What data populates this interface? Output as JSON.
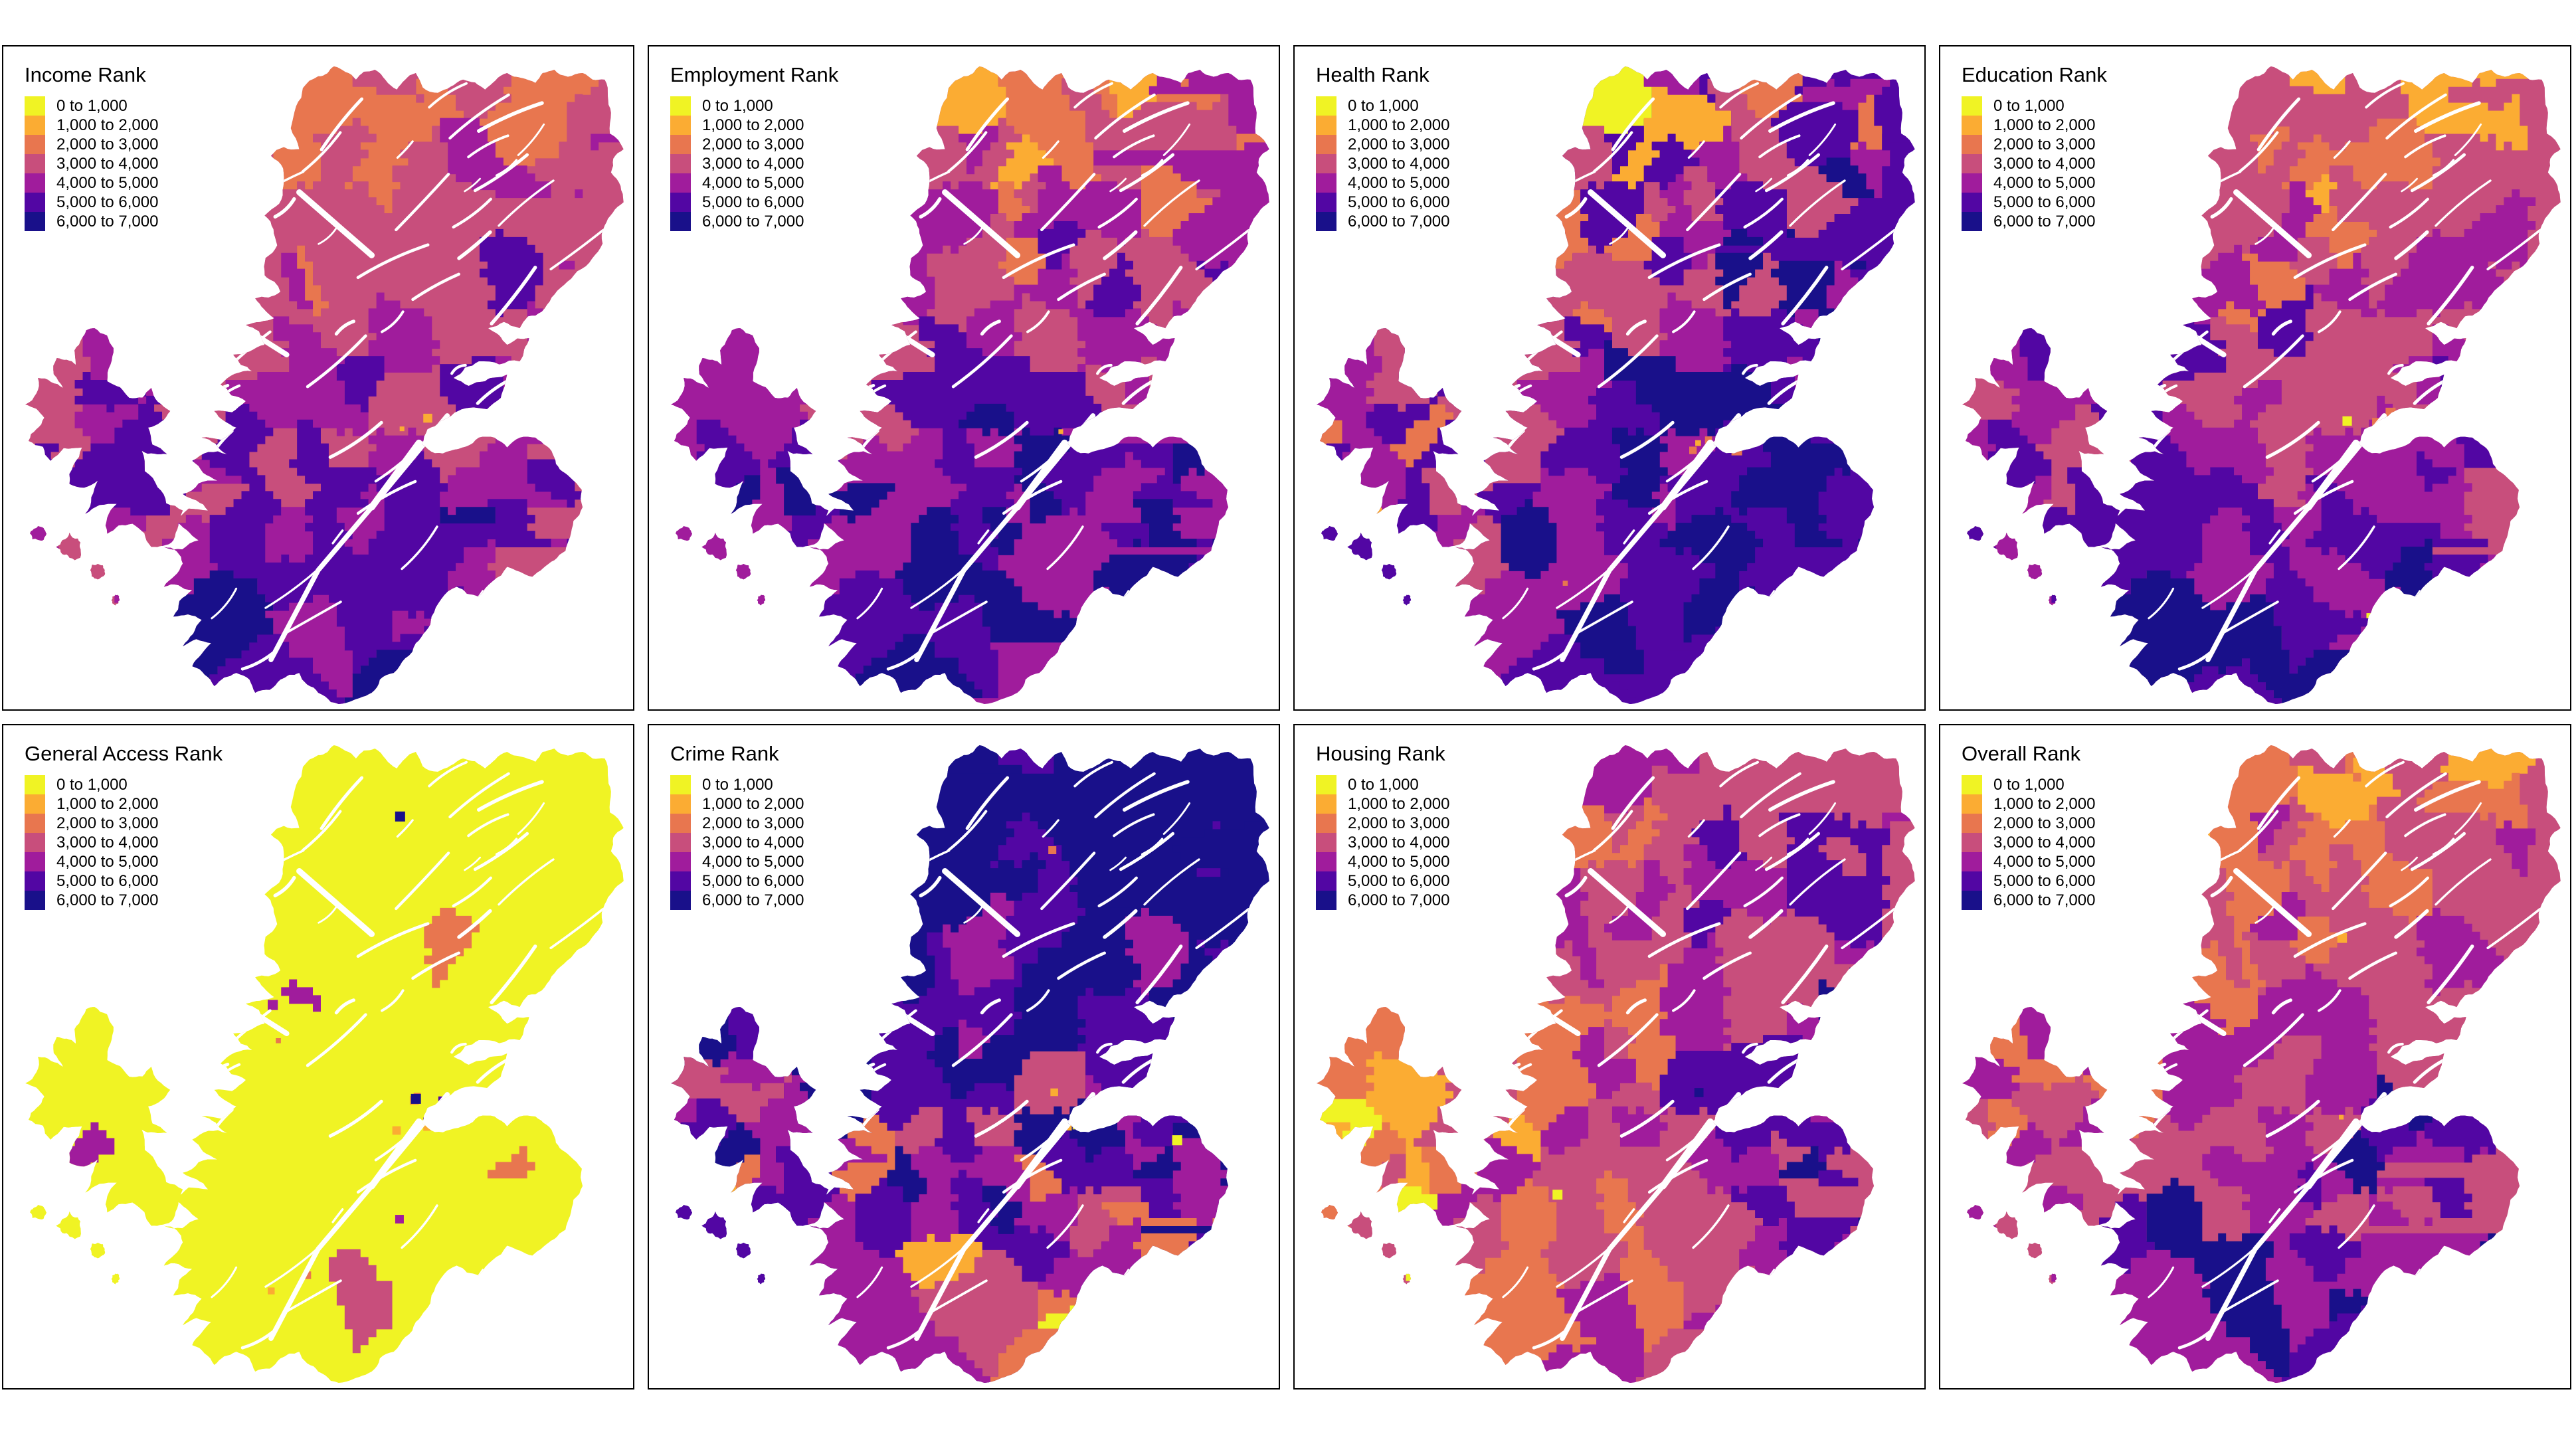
{
  "chart_data": {
    "type": "choropleth",
    "layout": "2x4-small-multiples",
    "class_breaks": [
      0,
      1000,
      2000,
      3000,
      4000,
      5000,
      6000,
      7000
    ],
    "legend_labels": [
      "0 to 1,000",
      "1,000 to 2,000",
      "2,000 to 3,000",
      "3,000 to 4,000",
      "4,000 to 5,000",
      "5,000 to 6,000",
      "6,000 to 7,000"
    ],
    "palette": [
      "#f0f324",
      "#fbac33",
      "#e8764f",
      "#c84e7c",
      "#a01c9c",
      "#5206a3",
      "#19108a"
    ],
    "legend_position": "top-left",
    "panels": [
      {
        "title": "Income Rank",
        "class_share_estimate": [
          0.002,
          0.025,
          0.1,
          0.3,
          0.25,
          0.26,
          0.063
        ],
        "town_specks": [
          {
            "class": 2,
            "count": 2
          },
          {
            "class": 7,
            "count": 2
          }
        ]
      },
      {
        "title": "Employment Rank",
        "class_share_estimate": [
          0.002,
          0.03,
          0.05,
          0.22,
          0.29,
          0.27,
          0.138
        ],
        "town_specks": [
          {
            "class": 2,
            "count": 2
          },
          {
            "class": 7,
            "count": 1
          }
        ]
      },
      {
        "title": "Health Rank",
        "class_share_estimate": [
          0.001,
          0.015,
          0.05,
          0.13,
          0.26,
          0.28,
          0.264
        ],
        "town_specks": [
          {
            "class": 3,
            "count": 4
          },
          {
            "class": 2,
            "count": 2
          }
        ]
      },
      {
        "title": "Education Rank",
        "class_share_estimate": [
          0.004,
          0.06,
          0.06,
          0.33,
          0.27,
          0.23,
          0.046
        ],
        "town_specks": [
          {
            "class": 1,
            "count": 2
          },
          {
            "class": 3,
            "count": 2
          }
        ]
      },
      {
        "title": "General Access Rank",
        "class_share_estimate": [
          0.962,
          0.012,
          0.012,
          0.004,
          0.004,
          0.003,
          0.003
        ],
        "town_specks": [
          {
            "class": 3,
            "count": 5
          },
          {
            "class": 2,
            "count": 5
          },
          {
            "class": 7,
            "count": 4
          },
          {
            "class": 6,
            "count": 3
          },
          {
            "class": 5,
            "count": 2
          }
        ]
      },
      {
        "title": "Crime Rank",
        "class_share_estimate": [
          0.003,
          0.02,
          0.06,
          0.13,
          0.18,
          0.23,
          0.377
        ],
        "town_specks": [
          {
            "class": 1,
            "count": 2
          },
          {
            "class": 2,
            "count": 2
          },
          {
            "class": 3,
            "count": 2
          }
        ]
      },
      {
        "title": "Housing Rank",
        "class_share_estimate": [
          0.015,
          0.115,
          0.17,
          0.32,
          0.21,
          0.1,
          0.07
        ],
        "town_specks": [
          {
            "class": 1,
            "count": 1
          },
          {
            "class": 7,
            "count": 2
          }
        ]
      },
      {
        "title": "Overall Rank",
        "class_share_estimate": [
          0.003,
          0.05,
          0.16,
          0.4,
          0.25,
          0.11,
          0.027
        ],
        "town_specks": [
          {
            "class": 2,
            "count": 2
          },
          {
            "class": 7,
            "count": 1
          }
        ]
      }
    ]
  }
}
